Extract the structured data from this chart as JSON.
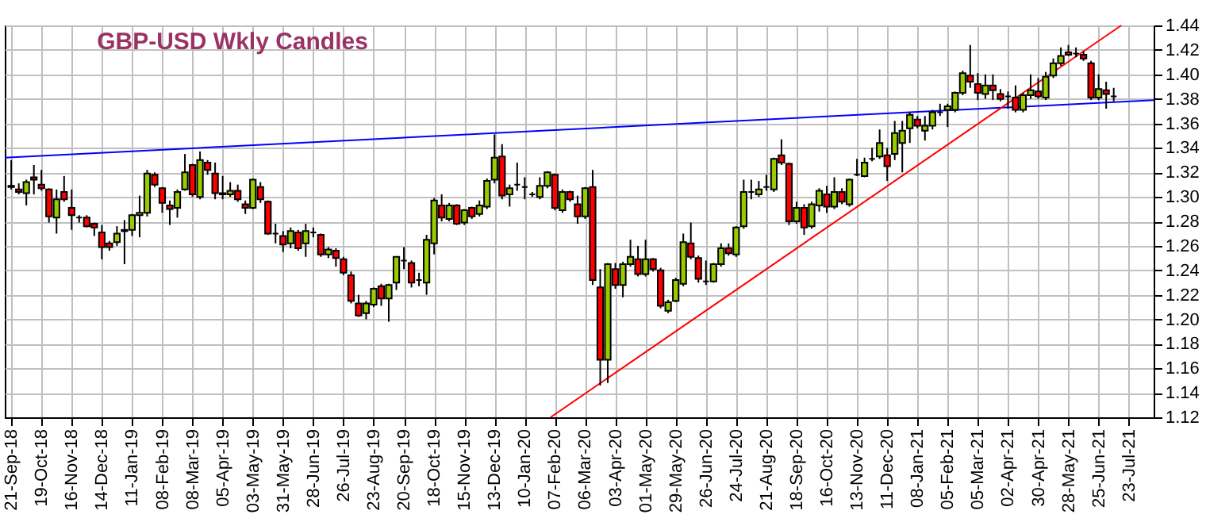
{
  "chart_data": {
    "type": "candlestick",
    "title": "GBP-USD Wkly Candles",
    "x": [
      "2018-09-21",
      "2018-09-28",
      "2018-10-05",
      "2018-10-12",
      "2018-10-19",
      "2018-10-26",
      "2018-11-02",
      "2018-11-09",
      "2018-11-16",
      "2018-11-23",
      "2018-11-30",
      "2018-12-07",
      "2018-12-14",
      "2018-12-21",
      "2018-12-28",
      "2019-01-04",
      "2019-01-11",
      "2019-01-18",
      "2019-01-25",
      "2019-02-01",
      "2019-02-08",
      "2019-02-15",
      "2019-02-22",
      "2019-03-01",
      "2019-03-08",
      "2019-03-15",
      "2019-03-22",
      "2019-03-29",
      "2019-04-05",
      "2019-04-12",
      "2019-04-19",
      "2019-04-26",
      "2019-05-03",
      "2019-05-10",
      "2019-05-17",
      "2019-05-24",
      "2019-05-31",
      "2019-06-07",
      "2019-06-14",
      "2019-06-21",
      "2019-06-28",
      "2019-07-05",
      "2019-07-12",
      "2019-07-19",
      "2019-07-26",
      "2019-08-02",
      "2019-08-09",
      "2019-08-16",
      "2019-08-23",
      "2019-08-30",
      "2019-09-06",
      "2019-09-13",
      "2019-09-20",
      "2019-09-27",
      "2019-10-04",
      "2019-10-11",
      "2019-10-18",
      "2019-10-25",
      "2019-11-01",
      "2019-11-08",
      "2019-11-15",
      "2019-11-22",
      "2019-11-29",
      "2019-12-06",
      "2019-12-13",
      "2019-12-20",
      "2019-12-27",
      "2020-01-03",
      "2020-01-10",
      "2020-01-17",
      "2020-01-24",
      "2020-01-31",
      "2020-02-07",
      "2020-02-14",
      "2020-02-21",
      "2020-02-28",
      "2020-03-06",
      "2020-03-13",
      "2020-03-20",
      "2020-03-27",
      "2020-04-03",
      "2020-04-10",
      "2020-04-17",
      "2020-04-24",
      "2020-05-01",
      "2020-05-08",
      "2020-05-15",
      "2020-05-22",
      "2020-05-29",
      "2020-06-05",
      "2020-06-12",
      "2020-06-19",
      "2020-06-26",
      "2020-07-03",
      "2020-07-10",
      "2020-07-17",
      "2020-07-24",
      "2020-07-31",
      "2020-08-07",
      "2020-08-14",
      "2020-08-21",
      "2020-08-28",
      "2020-09-04",
      "2020-09-11",
      "2020-09-18",
      "2020-09-25",
      "2020-10-02",
      "2020-10-09",
      "2020-10-16",
      "2020-10-23",
      "2020-10-30",
      "2020-11-06",
      "2020-11-13",
      "2020-11-20",
      "2020-11-27",
      "2020-12-04",
      "2020-12-11",
      "2020-12-18",
      "2020-12-25",
      "2021-01-01",
      "2021-01-08",
      "2021-01-15",
      "2021-01-22",
      "2021-01-29",
      "2021-02-05",
      "2021-02-12",
      "2021-02-19",
      "2021-02-26",
      "2021-03-05",
      "2021-03-12",
      "2021-03-19",
      "2021-03-26",
      "2021-04-02",
      "2021-04-09",
      "2021-04-16",
      "2021-04-23",
      "2021-04-30",
      "2021-05-07",
      "2021-05-14",
      "2021-05-21",
      "2021-05-28",
      "2021-06-04",
      "2021-06-11",
      "2021-06-18",
      "2021-06-25",
      "2021-07-02",
      "2021-07-09"
    ],
    "ohlc": [
      [
        1.309,
        1.33,
        1.306,
        1.308
      ],
      [
        1.306,
        1.311,
        1.302,
        1.304
      ],
      [
        1.303,
        1.314,
        1.293,
        1.312
      ],
      [
        1.316,
        1.326,
        1.302,
        1.314
      ],
      [
        1.31,
        1.322,
        1.305,
        1.307
      ],
      [
        1.306,
        1.307,
        1.279,
        1.284
      ],
      [
        1.283,
        1.306,
        1.27,
        1.298
      ],
      [
        1.304,
        1.317,
        1.296,
        1.298
      ],
      [
        1.291,
        1.306,
        1.273,
        1.285
      ],
      [
        1.283,
        1.285,
        1.279,
        1.283
      ],
      [
        1.283,
        1.285,
        1.275,
        1.276
      ],
      [
        1.278,
        1.279,
        1.268,
        1.275
      ],
      [
        1.271,
        1.277,
        1.249,
        1.259
      ],
      [
        1.262,
        1.264,
        1.256,
        1.259
      ],
      [
        1.263,
        1.276,
        1.26,
        1.27
      ],
      [
        1.272,
        1.281,
        1.245,
        1.273
      ],
      [
        1.273,
        1.286,
        1.268,
        1.285
      ],
      [
        1.285,
        1.301,
        1.267,
        1.287
      ],
      [
        1.287,
        1.322,
        1.284,
        1.319
      ],
      [
        1.318,
        1.32,
        1.308,
        1.31
      ],
      [
        1.307,
        1.308,
        1.287,
        1.295
      ],
      [
        1.293,
        1.297,
        1.277,
        1.29
      ],
      [
        1.291,
        1.306,
        1.283,
        1.304
      ],
      [
        1.306,
        1.335,
        1.305,
        1.32
      ],
      [
        1.326,
        1.327,
        1.3,
        1.302
      ],
      [
        1.3,
        1.337,
        1.298,
        1.33
      ],
      [
        1.328,
        1.33,
        1.318,
        1.322
      ],
      [
        1.319,
        1.328,
        1.298,
        1.303
      ],
      [
        1.302,
        1.317,
        1.298,
        1.303
      ],
      [
        1.302,
        1.312,
        1.3,
        1.305
      ],
      [
        1.305,
        1.31,
        1.296,
        1.298
      ],
      [
        1.294,
        1.297,
        1.286,
        1.291
      ],
      [
        1.291,
        1.315,
        1.29,
        1.314
      ],
      [
        1.308,
        1.312,
        1.295,
        1.298
      ],
      [
        1.296,
        1.297,
        1.269,
        1.27
      ],
      [
        1.27,
        1.278,
        1.262,
        1.27
      ],
      [
        1.268,
        1.272,
        1.255,
        1.261
      ],
      [
        1.262,
        1.275,
        1.258,
        1.272
      ],
      [
        1.271,
        1.273,
        1.256,
        1.258
      ],
      [
        1.262,
        1.278,
        1.251,
        1.272
      ],
      [
        1.271,
        1.275,
        1.267,
        1.271
      ],
      [
        1.269,
        1.27,
        1.251,
        1.253
      ],
      [
        1.253,
        1.259,
        1.25,
        1.257
      ],
      [
        1.256,
        1.258,
        1.243,
        1.25
      ],
      [
        1.249,
        1.251,
        1.236,
        1.238
      ],
      [
        1.236,
        1.239,
        1.213,
        1.215
      ],
      [
        1.213,
        1.22,
        1.202,
        1.203
      ],
      [
        1.205,
        1.215,
        1.2,
        1.213
      ],
      [
        1.212,
        1.226,
        1.21,
        1.225
      ],
      [
        1.227,
        1.229,
        1.211,
        1.217
      ],
      [
        1.217,
        1.229,
        1.198,
        1.228
      ],
      [
        1.23,
        1.251,
        1.224,
        1.251
      ],
      [
        1.248,
        1.259,
        1.241,
        1.248
      ],
      [
        1.246,
        1.248,
        1.226,
        1.23
      ],
      [
        1.232,
        1.238,
        1.227,
        1.232
      ],
      [
        1.23,
        1.269,
        1.22,
        1.265
      ],
      [
        1.262,
        1.299,
        1.253,
        1.297
      ],
      [
        1.293,
        1.302,
        1.28,
        1.283
      ],
      [
        1.282,
        1.295,
        1.28,
        1.293
      ],
      [
        1.293,
        1.294,
        1.277,
        1.278
      ],
      [
        1.279,
        1.29,
        1.277,
        1.289
      ],
      [
        1.291,
        1.292,
        1.282,
        1.284
      ],
      [
        1.286,
        1.297,
        1.284,
        1.293
      ],
      [
        1.292,
        1.315,
        1.29,
        1.313
      ],
      [
        1.314,
        1.351,
        1.311,
        1.332
      ],
      [
        1.333,
        1.343,
        1.298,
        1.301
      ],
      [
        1.302,
        1.31,
        1.292,
        1.307
      ],
      [
        1.31,
        1.328,
        1.305,
        1.31
      ],
      [
        1.308,
        1.316,
        1.298,
        1.308
      ],
      [
        1.302,
        1.304,
        1.3,
        1.302
      ],
      [
        1.3,
        1.316,
        1.298,
        1.309
      ],
      [
        1.309,
        1.321,
        1.307,
        1.32
      ],
      [
        1.318,
        1.319,
        1.289,
        1.291
      ],
      [
        1.289,
        1.306,
        1.287,
        1.304
      ],
      [
        1.304,
        1.305,
        1.296,
        1.298
      ],
      [
        1.294,
        1.301,
        1.278,
        1.284
      ],
      [
        1.284,
        1.308,
        1.282,
        1.307
      ],
      [
        1.308,
        1.322,
        1.228,
        1.232
      ],
      [
        1.226,
        1.241,
        1.146,
        1.167
      ],
      [
        1.167,
        1.246,
        1.148,
        1.245
      ],
      [
        1.241,
        1.246,
        1.225,
        1.228
      ],
      [
        1.228,
        1.247,
        1.218,
        1.245
      ],
      [
        1.245,
        1.265,
        1.243,
        1.251
      ],
      [
        1.249,
        1.26,
        1.235,
        1.237
      ],
      [
        1.237,
        1.265,
        1.235,
        1.249
      ],
      [
        1.249,
        1.25,
        1.239,
        1.241
      ],
      [
        1.24,
        1.242,
        1.209,
        1.211
      ],
      [
        1.207,
        1.216,
        1.205,
        1.214
      ],
      [
        1.215,
        1.234,
        1.214,
        1.232
      ],
      [
        1.229,
        1.27,
        1.227,
        1.263
      ],
      [
        1.262,
        1.279,
        1.249,
        1.251
      ],
      [
        1.25,
        1.252,
        1.23,
        1.233
      ],
      [
        1.231,
        1.248,
        1.228,
        1.231
      ],
      [
        1.231,
        1.246,
        1.23,
        1.245
      ],
      [
        1.245,
        1.262,
        1.243,
        1.258
      ],
      [
        1.258,
        1.262,
        1.252,
        1.254
      ],
      [
        1.253,
        1.276,
        1.251,
        1.275
      ],
      [
        1.276,
        1.314,
        1.274,
        1.304
      ],
      [
        1.304,
        1.314,
        1.298,
        1.304
      ],
      [
        1.302,
        1.313,
        1.3,
        1.306
      ],
      [
        1.308,
        1.318,
        1.305,
        1.308
      ],
      [
        1.306,
        1.332,
        1.304,
        1.331
      ],
      [
        1.334,
        1.347,
        1.326,
        1.328
      ],
      [
        1.327,
        1.328,
        1.277,
        1.28
      ],
      [
        1.28,
        1.296,
        1.278,
        1.291
      ],
      [
        1.291,
        1.294,
        1.269,
        1.275
      ],
      [
        1.276,
        1.296,
        1.274,
        1.294
      ],
      [
        1.293,
        1.307,
        1.288,
        1.305
      ],
      [
        1.302,
        1.309,
        1.287,
        1.292
      ],
      [
        1.292,
        1.316,
        1.29,
        1.304
      ],
      [
        1.304,
        1.307,
        1.294,
        1.296
      ],
      [
        1.294,
        1.315,
        1.292,
        1.314
      ],
      [
        1.318,
        1.331,
        1.317,
        1.318
      ],
      [
        1.317,
        1.332,
        1.316,
        1.328
      ],
      [
        1.331,
        1.34,
        1.329,
        1.331
      ],
      [
        1.333,
        1.355,
        1.331,
        1.344
      ],
      [
        1.334,
        1.34,
        1.313,
        1.325
      ],
      [
        1.335,
        1.362,
        1.33,
        1.352
      ],
      [
        1.344,
        1.362,
        1.32,
        1.354
      ],
      [
        1.356,
        1.369,
        1.344,
        1.367
      ],
      [
        1.363,
        1.366,
        1.356,
        1.358
      ],
      [
        1.354,
        1.366,
        1.346,
        1.358
      ],
      [
        1.358,
        1.371,
        1.355,
        1.369
      ],
      [
        1.369,
        1.376,
        1.366,
        1.369
      ],
      [
        1.371,
        1.376,
        1.357,
        1.374
      ],
      [
        1.371,
        1.386,
        1.369,
        1.385
      ],
      [
        1.385,
        1.403,
        1.383,
        1.401
      ],
      [
        1.399,
        1.424,
        1.389,
        1.394
      ],
      [
        1.392,
        1.401,
        1.379,
        1.385
      ],
      [
        1.384,
        1.4,
        1.38,
        1.391
      ],
      [
        1.391,
        1.4,
        1.379,
        1.387
      ],
      [
        1.384,
        1.388,
        1.378,
        1.38
      ],
      [
        1.382,
        1.386,
        1.372,
        1.382
      ],
      [
        1.381,
        1.391,
        1.369,
        1.371
      ],
      [
        1.371,
        1.385,
        1.369,
        1.383
      ],
      [
        1.383,
        1.4,
        1.38,
        1.387
      ],
      [
        1.386,
        1.397,
        1.38,
        1.382
      ],
      [
        1.381,
        1.402,
        1.379,
        1.398
      ],
      [
        1.399,
        1.413,
        1.397,
        1.409
      ],
      [
        1.409,
        1.422,
        1.407,
        1.415
      ],
      [
        1.418,
        1.424,
        1.415,
        1.416
      ],
      [
        1.417,
        1.422,
        1.414,
        1.417
      ],
      [
        1.416,
        1.419,
        1.411,
        1.413
      ],
      [
        1.409,
        1.411,
        1.379,
        1.381
      ],
      [
        1.381,
        1.4,
        1.379,
        1.388
      ],
      [
        1.387,
        1.394,
        1.372,
        1.384
      ],
      [
        1.382,
        1.389,
        1.378,
        1.382
      ]
    ],
    "colors": [
      "#ff0000",
      "#ff0000",
      "#99cc00",
      "#ff0000",
      "#ff0000",
      "#ff0000",
      "#99cc00",
      "#ff0000",
      "#ff0000",
      "#000000",
      "#ff0000",
      "#ff0000",
      "#ff0000",
      "#ff0000",
      "#99cc00",
      "#99cc00",
      "#99cc00",
      "#99cc00",
      "#99cc00",
      "#ff0000",
      "#ff0000",
      "#ff0000",
      "#99cc00",
      "#99cc00",
      "#ff0000",
      "#99cc00",
      "#ff0000",
      "#ff0000",
      "#99cc00",
      "#99cc00",
      "#ff0000",
      "#ff0000",
      "#99cc00",
      "#ff0000",
      "#ff0000",
      "#000000",
      "#ff0000",
      "#99cc00",
      "#ff0000",
      "#99cc00",
      "#000000",
      "#ff0000",
      "#99cc00",
      "#ff0000",
      "#ff0000",
      "#ff0000",
      "#ff0000",
      "#99cc00",
      "#99cc00",
      "#ff0000",
      "#99cc00",
      "#99cc00",
      "#000000",
      "#ff0000",
      "#000000",
      "#99cc00",
      "#99cc00",
      "#ff0000",
      "#99cc00",
      "#ff0000",
      "#99cc00",
      "#ff0000",
      "#99cc00",
      "#99cc00",
      "#99cc00",
      "#ff0000",
      "#99cc00",
      "#000000",
      "#000000",
      "#000000",
      "#99cc00",
      "#99cc00",
      "#ff0000",
      "#99cc00",
      "#ff0000",
      "#ff0000",
      "#99cc00",
      "#ff0000",
      "#ff0000",
      "#99cc00",
      "#ff0000",
      "#99cc00",
      "#99cc00",
      "#ff0000",
      "#99cc00",
      "#ff0000",
      "#ff0000",
      "#99cc00",
      "#99cc00",
      "#99cc00",
      "#ff0000",
      "#ff0000",
      "#000000",
      "#99cc00",
      "#99cc00",
      "#ff0000",
      "#99cc00",
      "#99cc00",
      "#000000",
      "#99cc00",
      "#000000",
      "#99cc00",
      "#ff0000",
      "#ff0000",
      "#99cc00",
      "#ff0000",
      "#99cc00",
      "#99cc00",
      "#ff0000",
      "#99cc00",
      "#ff0000",
      "#99cc00",
      "#000000",
      "#99cc00",
      "#000000",
      "#99cc00",
      "#ff0000",
      "#99cc00",
      "#99cc00",
      "#99cc00",
      "#ff0000",
      "#99cc00",
      "#99cc00",
      "#000000",
      "#99cc00",
      "#99cc00",
      "#99cc00",
      "#ff0000",
      "#ff0000",
      "#99cc00",
      "#ff0000",
      "#ff0000",
      "#000000",
      "#ff0000",
      "#99cc00",
      "#99cc00",
      "#ff0000",
      "#99cc00",
      "#99cc00",
      "#99cc00",
      "#ff0000",
      "#000000",
      "#ff0000",
      "#ff0000",
      "#99cc00",
      "#ff0000",
      "#000000"
    ],
    "series": [
      {
        "type": "line",
        "color": "#0000ff",
        "x": [
          "2018-09-15",
          "2021-08-15"
        ],
        "values": [
          1.332,
          1.379
        ]
      },
      {
        "type": "line",
        "color": "#ff0000",
        "x": [
          "2020-02-03",
          "2021-07-16"
        ],
        "values": [
          1.12,
          1.44
        ]
      }
    ],
    "xlim": [
      "2018-09-15",
      "2021-08-15"
    ],
    "xticks": [
      {
        "value": "2018-09-21",
        "label": "21-Sep-18"
      },
      {
        "value": "2018-10-19",
        "label": "19-Oct-18"
      },
      {
        "value": "2018-11-16",
        "label": "16-Nov-18"
      },
      {
        "value": "2018-12-14",
        "label": "14-Dec-18"
      },
      {
        "value": "2019-01-11",
        "label": "11-Jan-19"
      },
      {
        "value": "2019-02-08",
        "label": "08-Feb-19"
      },
      {
        "value": "2019-03-08",
        "label": "08-Mar-19"
      },
      {
        "value": "2019-04-05",
        "label": "05-Apr-19"
      },
      {
        "value": "2019-05-03",
        "label": "03-May-19"
      },
      {
        "value": "2019-05-31",
        "label": "31-May-19"
      },
      {
        "value": "2019-06-28",
        "label": "28-Jun-19"
      },
      {
        "value": "2019-07-26",
        "label": "26-Jul-19"
      },
      {
        "value": "2019-08-23",
        "label": "23-Aug-19"
      },
      {
        "value": "2019-09-20",
        "label": "20-Sep-19"
      },
      {
        "value": "2019-10-18",
        "label": "18-Oct-19"
      },
      {
        "value": "2019-11-15",
        "label": "15-Nov-19"
      },
      {
        "value": "2019-12-13",
        "label": "13-Dec-19"
      },
      {
        "value": "2020-01-10",
        "label": "10-Jan-20"
      },
      {
        "value": "2020-02-07",
        "label": "07-Feb-20"
      },
      {
        "value": "2020-03-06",
        "label": "06-Mar-20"
      },
      {
        "value": "2020-04-03",
        "label": "03-Apr-20"
      },
      {
        "value": "2020-05-01",
        "label": "01-May-20"
      },
      {
        "value": "2020-05-29",
        "label": "29-May-20"
      },
      {
        "value": "2020-06-26",
        "label": "26-Jun-20"
      },
      {
        "value": "2020-07-24",
        "label": "24-Jul-20"
      },
      {
        "value": "2020-08-21",
        "label": "21-Aug-20"
      },
      {
        "value": "2020-09-18",
        "label": "18-Sep-20"
      },
      {
        "value": "2020-10-16",
        "label": "16-Oct-20"
      },
      {
        "value": "2020-11-13",
        "label": "13-Nov-20"
      },
      {
        "value": "2020-12-11",
        "label": "11-Dec-20"
      },
      {
        "value": "2021-01-08",
        "label": "08-Jan-21"
      },
      {
        "value": "2021-02-05",
        "label": "05-Feb-21"
      },
      {
        "value": "2021-03-05",
        "label": "05-Mar-21"
      },
      {
        "value": "2021-04-02",
        "label": "02-Apr-21"
      },
      {
        "value": "2021-04-30",
        "label": "30-Apr-21"
      },
      {
        "value": "2021-05-28",
        "label": "28-May-21"
      },
      {
        "value": "2021-06-25",
        "label": "25-Jun-21"
      },
      {
        "value": "2021-07-23",
        "label": "23-Jul-21"
      }
    ],
    "ylim": [
      1.12,
      1.44
    ],
    "yticks": [
      1.12,
      1.14,
      1.16,
      1.18,
      {
        "value": 1.2,
        "label": "1.20"
      },
      1.22,
      1.24,
      1.26,
      1.28,
      {
        "value": 1.3,
        "label": "1.30"
      },
      1.32,
      1.34,
      1.36,
      1.38,
      {
        "value": 1.4,
        "label": "1.40"
      },
      1.42,
      1.44
    ],
    "grid": true
  }
}
